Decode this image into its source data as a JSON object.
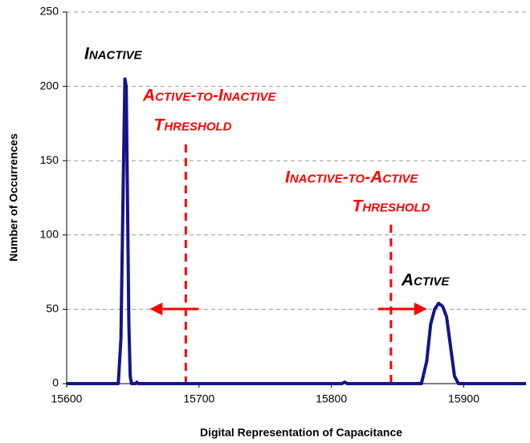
{
  "chart_data": {
    "type": "line",
    "xlabel": "Digital Representation of Capacitance",
    "ylabel": "Number of Occurrences",
    "x": [
      15600,
      15639,
      15641,
      15643,
      15644,
      15645,
      15646,
      15647,
      15648,
      15649,
      15652,
      15653,
      15654,
      15808,
      15810,
      15812,
      15868,
      15872,
      15875,
      15878,
      15881,
      15884,
      15887,
      15890,
      15893,
      15896,
      15947
    ],
    "values": [
      0,
      0,
      30,
      150,
      205,
      200,
      120,
      40,
      5,
      0,
      0,
      1,
      0,
      0,
      1,
      0,
      0,
      15,
      40,
      50,
      54,
      52,
      45,
      25,
      5,
      0,
      0
    ],
    "color": "#14148c",
    "xlim": [
      15600,
      15947
    ],
    "xticks": [
      15600,
      15700,
      15800,
      15900
    ],
    "ylim": [
      0,
      250
    ],
    "yticks": [
      0,
      50,
      100,
      150,
      200,
      250
    ],
    "grid": true,
    "annotations": [
      "Inactive",
      "Active"
    ],
    "thresholds": [
      {
        "x": 15690,
        "label": [
          "Active-to-Inactive",
          "Threshold"
        ],
        "direction": "left"
      },
      {
        "x": 15845,
        "label": [
          "Inactive-to-Active",
          "Threshold"
        ],
        "direction": "right"
      }
    ],
    "threshold_color": "#ff0000"
  }
}
